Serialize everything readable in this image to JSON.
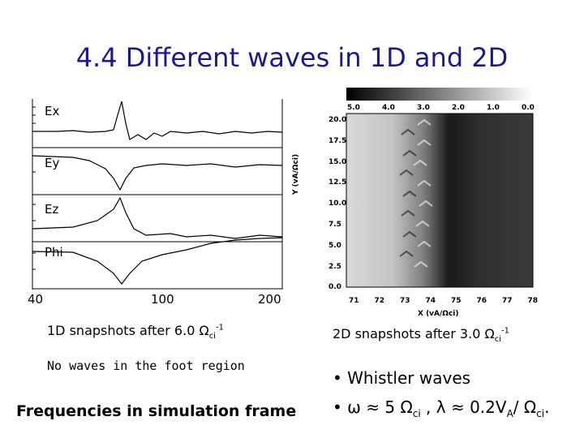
{
  "title": "4.4 Different waves in 1D and 2D",
  "plot1d": {
    "panels": [
      "Ex",
      "Ey",
      "Ez",
      "Phi"
    ],
    "xticks": [
      "40",
      "100",
      "200"
    ]
  },
  "caption1d": {
    "text": "1D snapshots after 6.0 Ω",
    "sub": "ci",
    "sup": "-1"
  },
  "note": "No waves in the foot region",
  "plot2d": {
    "colorbar_ticks": [
      "5.0",
      "4.0",
      "3.0",
      "2.0",
      "1.0",
      "0.0"
    ],
    "yticks": [
      "20.0",
      "17.5",
      "15.0",
      "12.5",
      "10.0",
      "7.5",
      "5.0",
      "2.5",
      "0.0"
    ],
    "xticks": [
      "71",
      "72",
      "73",
      "74",
      "75",
      "76",
      "77",
      "78"
    ],
    "ylabel": "Y (vA/Ωci)",
    "xlabel": "X (vA/Ωci)"
  },
  "caption2d": {
    "text": "2D snapshots after 3.0 Ω",
    "sub": "ci",
    "sup": "-1"
  },
  "bullets": {
    "b1": "Whistler waves",
    "b2_pre": "ω ≈ 5 Ω",
    "b2_sub": "ci",
    "b2_mid": " , λ ≈ 0.2V",
    "b2_sub2": "A",
    "b2_end": "/ Ω",
    "b2_sub3": "ci",
    "b2_tail": "."
  },
  "freq": "Frequencies in simulation frame"
}
